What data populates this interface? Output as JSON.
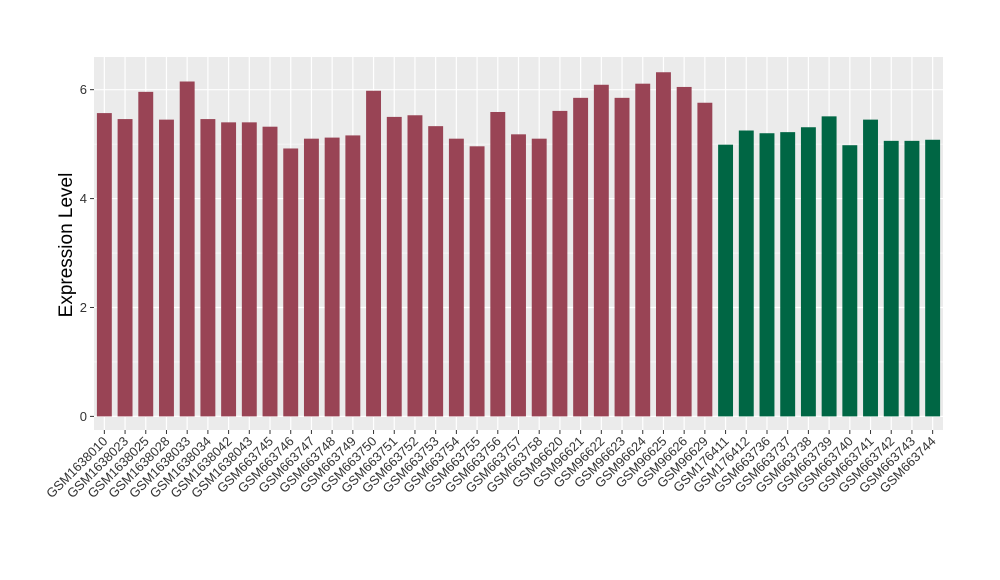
{
  "chart_data": {
    "type": "bar",
    "ylabel": "Expression Level",
    "xlabel": "",
    "ylim": [
      -0.25,
      6.6
    ],
    "yticks": [
      0,
      2,
      4,
      6
    ],
    "grid": true,
    "colors": {
      "group1": "#994455",
      "group2": "#006644",
      "panel": "#ebebeb",
      "gridline": "#ffffff"
    },
    "categories": [
      "GSM1638010",
      "GSM1638023",
      "GSM1638025",
      "GSM1638028",
      "GSM1638033",
      "GSM1638034",
      "GSM1638042",
      "GSM1638043",
      "GSM663745",
      "GSM663746",
      "GSM663747",
      "GSM663748",
      "GSM663749",
      "GSM663750",
      "GSM663751",
      "GSM663752",
      "GSM663753",
      "GSM663754",
      "GSM663755",
      "GSM663756",
      "GSM663757",
      "GSM663758",
      "GSM96620",
      "GSM96621",
      "GSM96622",
      "GSM96623",
      "GSM96624",
      "GSM96625",
      "GSM96626",
      "GSM96629",
      "GSM176411",
      "GSM176412",
      "GSM663736",
      "GSM663737",
      "GSM663738",
      "GSM663739",
      "GSM663740",
      "GSM663741",
      "GSM663742",
      "GSM663743",
      "GSM663744"
    ],
    "values": [
      5.57,
      5.46,
      5.96,
      5.45,
      6.15,
      5.46,
      5.4,
      5.4,
      5.32,
      4.92,
      5.1,
      5.12,
      5.16,
      5.98,
      5.5,
      5.53,
      5.33,
      5.1,
      4.96,
      5.59,
      5.18,
      5.1,
      5.61,
      5.85,
      6.09,
      5.85,
      6.11,
      6.32,
      6.05,
      5.76,
      4.99,
      5.25,
      5.2,
      5.22,
      5.31,
      5.51,
      4.98,
      5.45,
      5.06,
      5.06,
      5.08
    ],
    "groups": [
      1,
      1,
      1,
      1,
      1,
      1,
      1,
      1,
      1,
      1,
      1,
      1,
      1,
      1,
      1,
      1,
      1,
      1,
      1,
      1,
      1,
      1,
      1,
      1,
      1,
      1,
      1,
      1,
      1,
      1,
      2,
      2,
      2,
      2,
      2,
      2,
      2,
      2,
      2,
      2,
      2
    ]
  }
}
